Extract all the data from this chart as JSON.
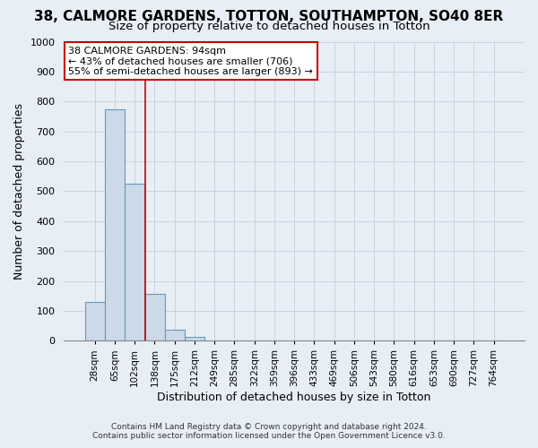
{
  "title": "38, CALMORE GARDENS, TOTTON, SOUTHAMPTON, SO40 8ER",
  "subtitle": "Size of property relative to detached houses in Totton",
  "xlabel": "Distribution of detached houses by size in Totton",
  "ylabel": "Number of detached properties",
  "bar_values": [
    130,
    775,
    525,
    158,
    37,
    13,
    0,
    0,
    0,
    0,
    0,
    0,
    0,
    0,
    0,
    0,
    0,
    0,
    0,
    0,
    0
  ],
  "bin_labels": [
    "28sqm",
    "65sqm",
    "102sqm",
    "138sqm",
    "175sqm",
    "212sqm",
    "249sqm",
    "285sqm",
    "322sqm",
    "359sqm",
    "396sqm",
    "433sqm",
    "469sqm",
    "506sqm",
    "543sqm",
    "580sqm",
    "616sqm",
    "653sqm",
    "690sqm",
    "727sqm",
    "764sqm"
  ],
  "bar_color": "#ccd9e8",
  "bar_edge_color": "#6699bb",
  "vline_x": 2.55,
  "vline_color": "#cc0000",
  "annotation_box_text": "38 CALMORE GARDENS: 94sqm\n← 43% of detached houses are smaller (706)\n55% of semi-detached houses are larger (893) →",
  "annotation_box_color": "#cc0000",
  "ylim": [
    0,
    1000
  ],
  "yticks": [
    0,
    100,
    200,
    300,
    400,
    500,
    600,
    700,
    800,
    900,
    1000
  ],
  "footer_line1": "Contains HM Land Registry data © Crown copyright and database right 2024.",
  "footer_line2": "Contains public sector information licensed under the Open Government Licence v3.0.",
  "background_color": "#e8eef5",
  "plot_background_color": "#e8eef5",
  "grid_color": "#c0c8d8",
  "title_fontsize": 11,
  "subtitle_fontsize": 9.5,
  "axis_label_fontsize": 9,
  "tick_fontsize": 7.5,
  "annotation_fontsize": 8
}
